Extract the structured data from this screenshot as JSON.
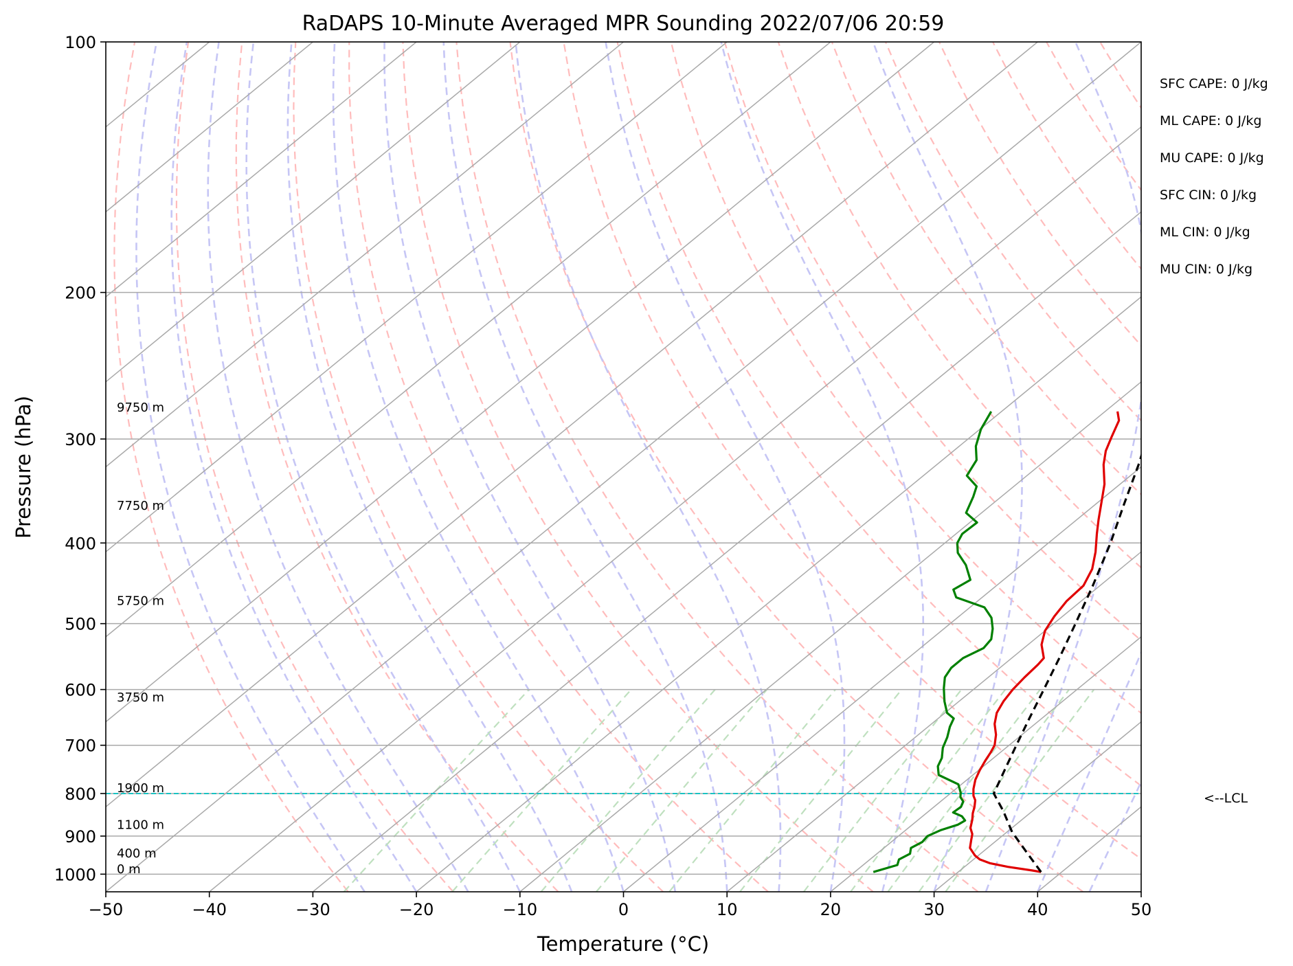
{
  "chart_data": {
    "type": "line",
    "subtype": "skew-t log-p",
    "title": "RaDAPS 10-Minute Averaged MPR Sounding 2022/07/06 20:59",
    "xlabel": "Temperature (°C)",
    "ylabel": "Pressure (hPa)",
    "xlim": [
      -50,
      50
    ],
    "ylim": [
      1050,
      100
    ],
    "x_ticks": [
      -50,
      -40,
      -30,
      -20,
      -10,
      0,
      10,
      20,
      30,
      40,
      50
    ],
    "x_tick_labels": [
      "−50",
      "−40",
      "−30",
      "−20",
      "−10",
      "0",
      "10",
      "20",
      "30",
      "40",
      "50"
    ],
    "y_ticks": [
      100,
      200,
      300,
      400,
      500,
      600,
      700,
      800,
      900,
      1000
    ],
    "y_tick_labels": [
      "100",
      "200",
      "300",
      "400",
      "500",
      "600",
      "700",
      "800",
      "900",
      "1000"
    ],
    "y_scale": "log",
    "grid": true,
    "background_lines": {
      "isotherms": {
        "color": "#a9a9a9",
        "style": "solid"
      },
      "dry_adiabats": {
        "color": "#ffbcbc",
        "style": "dashed"
      },
      "moist_adiabats": {
        "color": "#c6c6f5",
        "style": "dashed"
      },
      "mixing_ratio": {
        "color": "#bfe0bf",
        "style": "dashed"
      }
    },
    "height_labels": [
      {
        "text": "9750 m",
        "pressure": 278
      },
      {
        "text": "7750 m",
        "pressure": 365
      },
      {
        "text": "5750 m",
        "pressure": 475
      },
      {
        "text": "3750 m",
        "pressure": 620
      },
      {
        "text": "1900 m",
        "pressure": 797
      },
      {
        "text": "1100 m",
        "pressure": 882
      },
      {
        "text": "400 m",
        "pressure": 955
      },
      {
        "text": "0 m",
        "pressure": 997
      }
    ],
    "lcl": {
      "pressure": 800,
      "label": "<--LCL",
      "color": "#19c2c2"
    },
    "stats": [
      "SFC CAPE: 0 J/kg",
      "ML CAPE: 0 J/kg",
      "MU CAPE: 0 J/kg",
      "SFC CIN: 0 J/kg",
      "ML CIN: 0 J/kg",
      "MU CIN: 0 J/kg"
    ],
    "series": [
      {
        "color": "#e00000",
        "points": [
          [
            994,
            38.0
          ],
          [
            990,
            37.0
          ],
          [
            980,
            34.2
          ],
          [
            970,
            32.0
          ],
          [
            960,
            30.6
          ],
          [
            950,
            29.7
          ],
          [
            930,
            28.3
          ],
          [
            910,
            27.5
          ],
          [
            895,
            26.9
          ],
          [
            880,
            26.0
          ],
          [
            860,
            25.2
          ],
          [
            845,
            24.5
          ],
          [
            830,
            23.9
          ],
          [
            815,
            23.2
          ],
          [
            805,
            22.5
          ],
          [
            790,
            21.7
          ],
          [
            770,
            20.8
          ],
          [
            750,
            20.1
          ],
          [
            730,
            19.5
          ],
          [
            715,
            19.1
          ],
          [
            700,
            18.6
          ],
          [
            680,
            17.5
          ],
          [
            660,
            16.1
          ],
          [
            640,
            15.0
          ],
          [
            620,
            14.3
          ],
          [
            600,
            13.8
          ],
          [
            580,
            13.5
          ],
          [
            560,
            13.3
          ],
          [
            550,
            13.1
          ],
          [
            530,
            11.3
          ],
          [
            510,
            10.0
          ],
          [
            490,
            9.2
          ],
          [
            470,
            8.6
          ],
          [
            450,
            8.4
          ],
          [
            430,
            7.3
          ],
          [
            410,
            5.6
          ],
          [
            390,
            3.6
          ],
          [
            375,
            2.1
          ],
          [
            360,
            0.6
          ],
          [
            340,
            -1.5
          ],
          [
            322,
            -3.9
          ],
          [
            310,
            -5.3
          ],
          [
            298,
            -6.4
          ],
          [
            285,
            -7.6
          ],
          [
            278,
            -8.8
          ]
        ]
      },
      {
        "color": "#008000",
        "points": [
          [
            994,
            21.8
          ],
          [
            975,
            23.3
          ],
          [
            960,
            22.8
          ],
          [
            945,
            23.2
          ],
          [
            930,
            22.6
          ],
          [
            915,
            23.0
          ],
          [
            900,
            22.8
          ],
          [
            885,
            23.4
          ],
          [
            872,
            24.4
          ],
          [
            862,
            24.6
          ],
          [
            852,
            23.8
          ],
          [
            843,
            22.5
          ],
          [
            830,
            22.6
          ],
          [
            818,
            22.2
          ],
          [
            808,
            21.4
          ],
          [
            798,
            20.9
          ],
          [
            780,
            19.7
          ],
          [
            760,
            16.7
          ],
          [
            742,
            15.6
          ],
          [
            725,
            15.0
          ],
          [
            705,
            13.9
          ],
          [
            685,
            13.1
          ],
          [
            665,
            12.1
          ],
          [
            650,
            11.5
          ],
          [
            640,
            10.2
          ],
          [
            620,
            8.6
          ],
          [
            598,
            7.0
          ],
          [
            580,
            5.8
          ],
          [
            565,
            5.3
          ],
          [
            550,
            5.3
          ],
          [
            535,
            6.1
          ],
          [
            522,
            5.8
          ],
          [
            507,
            4.7
          ],
          [
            492,
            3.3
          ],
          [
            478,
            1.4
          ],
          [
            465,
            -2.5
          ],
          [
            455,
            -3.7
          ],
          [
            443,
            -3.2
          ],
          [
            425,
            -5.4
          ],
          [
            411,
            -7.6
          ],
          [
            400,
            -8.8
          ],
          [
            390,
            -9.4
          ],
          [
            378,
            -9.3
          ],
          [
            368,
            -11.5
          ],
          [
            352,
            -12.7
          ],
          [
            342,
            -13.6
          ],
          [
            332,
            -15.8
          ],
          [
            318,
            -16.7
          ],
          [
            306,
            -18.4
          ],
          [
            292,
            -19.9
          ],
          [
            278,
            -21.0
          ]
        ]
      },
      {
        "color": "#000000",
        "style": "dashed",
        "points": [
          [
            994,
            38.0
          ],
          [
            940,
            34.2
          ],
          [
            890,
            30.5
          ],
          [
            840,
            27.2
          ],
          [
            800,
            24.2
          ],
          [
            750,
            22.5
          ],
          [
            700,
            20.7
          ],
          [
            650,
            18.8
          ],
          [
            600,
            16.8
          ],
          [
            550,
            14.6
          ],
          [
            500,
            12.1
          ],
          [
            450,
            9.3
          ],
          [
            400,
            6.0
          ],
          [
            360,
            2.8
          ],
          [
            320,
            -0.7
          ],
          [
            298,
            -3.0
          ],
          [
            280,
            -5.2
          ]
        ]
      }
    ]
  }
}
